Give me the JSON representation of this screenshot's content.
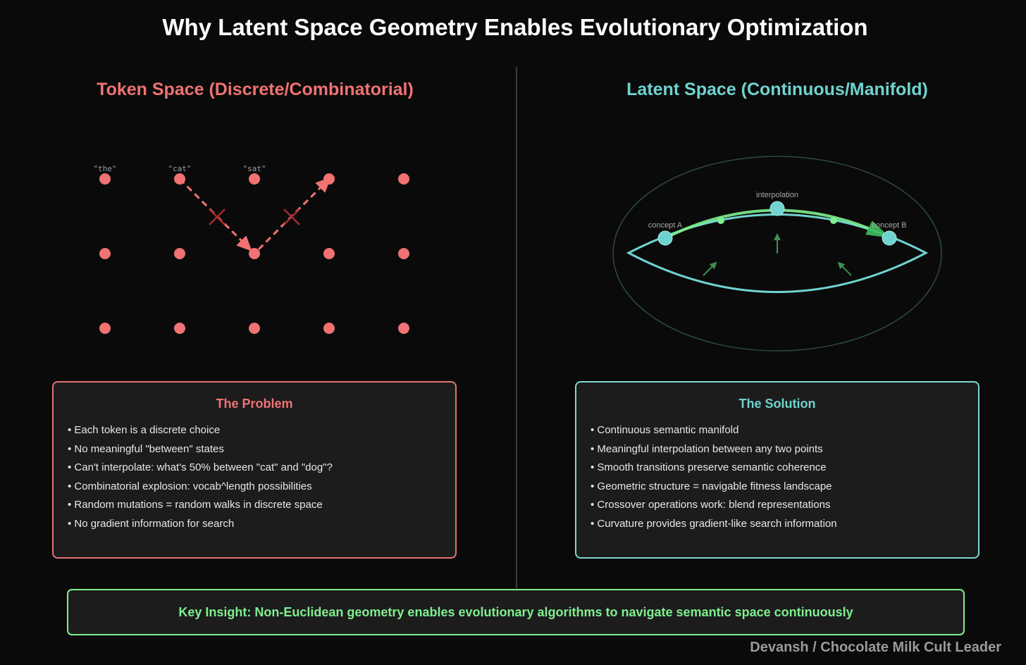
{
  "title": "Why Latent Space Geometry Enables Evolutionary Optimization",
  "token_space": {
    "heading": "Token Space (Discrete/Combinatorial)",
    "token_labels": [
      "\"the\"",
      "\"cat\"",
      "\"sat\""
    ],
    "grid": {
      "rows": 3,
      "cols": 5
    },
    "dot_color": "#f07272"
  },
  "latent_space": {
    "heading": "Latent Space (Continuous/Manifold)",
    "labels": {
      "concept_a": "concept A",
      "concept_b": "concept B",
      "interpolation": "interpolation"
    },
    "manifold_color": "#6fd3cf",
    "path_color": "#7ef08f"
  },
  "problem": {
    "title": "The Problem",
    "items": [
      "Each token is a discrete choice",
      "No meaningful \"between\" states",
      "Can't interpolate: what's 50% between \"cat\" and \"dog\"?",
      "Combinatorial explosion: vocab^length possibilities",
      "Random mutations = random walks in discrete space",
      "No gradient information for search"
    ]
  },
  "solution": {
    "title": "The Solution",
    "items": [
      "Continuous semantic manifold",
      "Meaningful interpolation between any two points",
      "Smooth transitions preserve semantic coherence",
      "Geometric structure = navigable fitness landscape",
      "Crossover operations work: blend representations",
      "Curvature provides gradient-like search information"
    ]
  },
  "key_insight": "Key Insight: Non-Euclidean geometry enables evolutionary algorithms to navigate semantic space continuously",
  "credit": "Devansh / Chocolate Milk Cult Leader"
}
